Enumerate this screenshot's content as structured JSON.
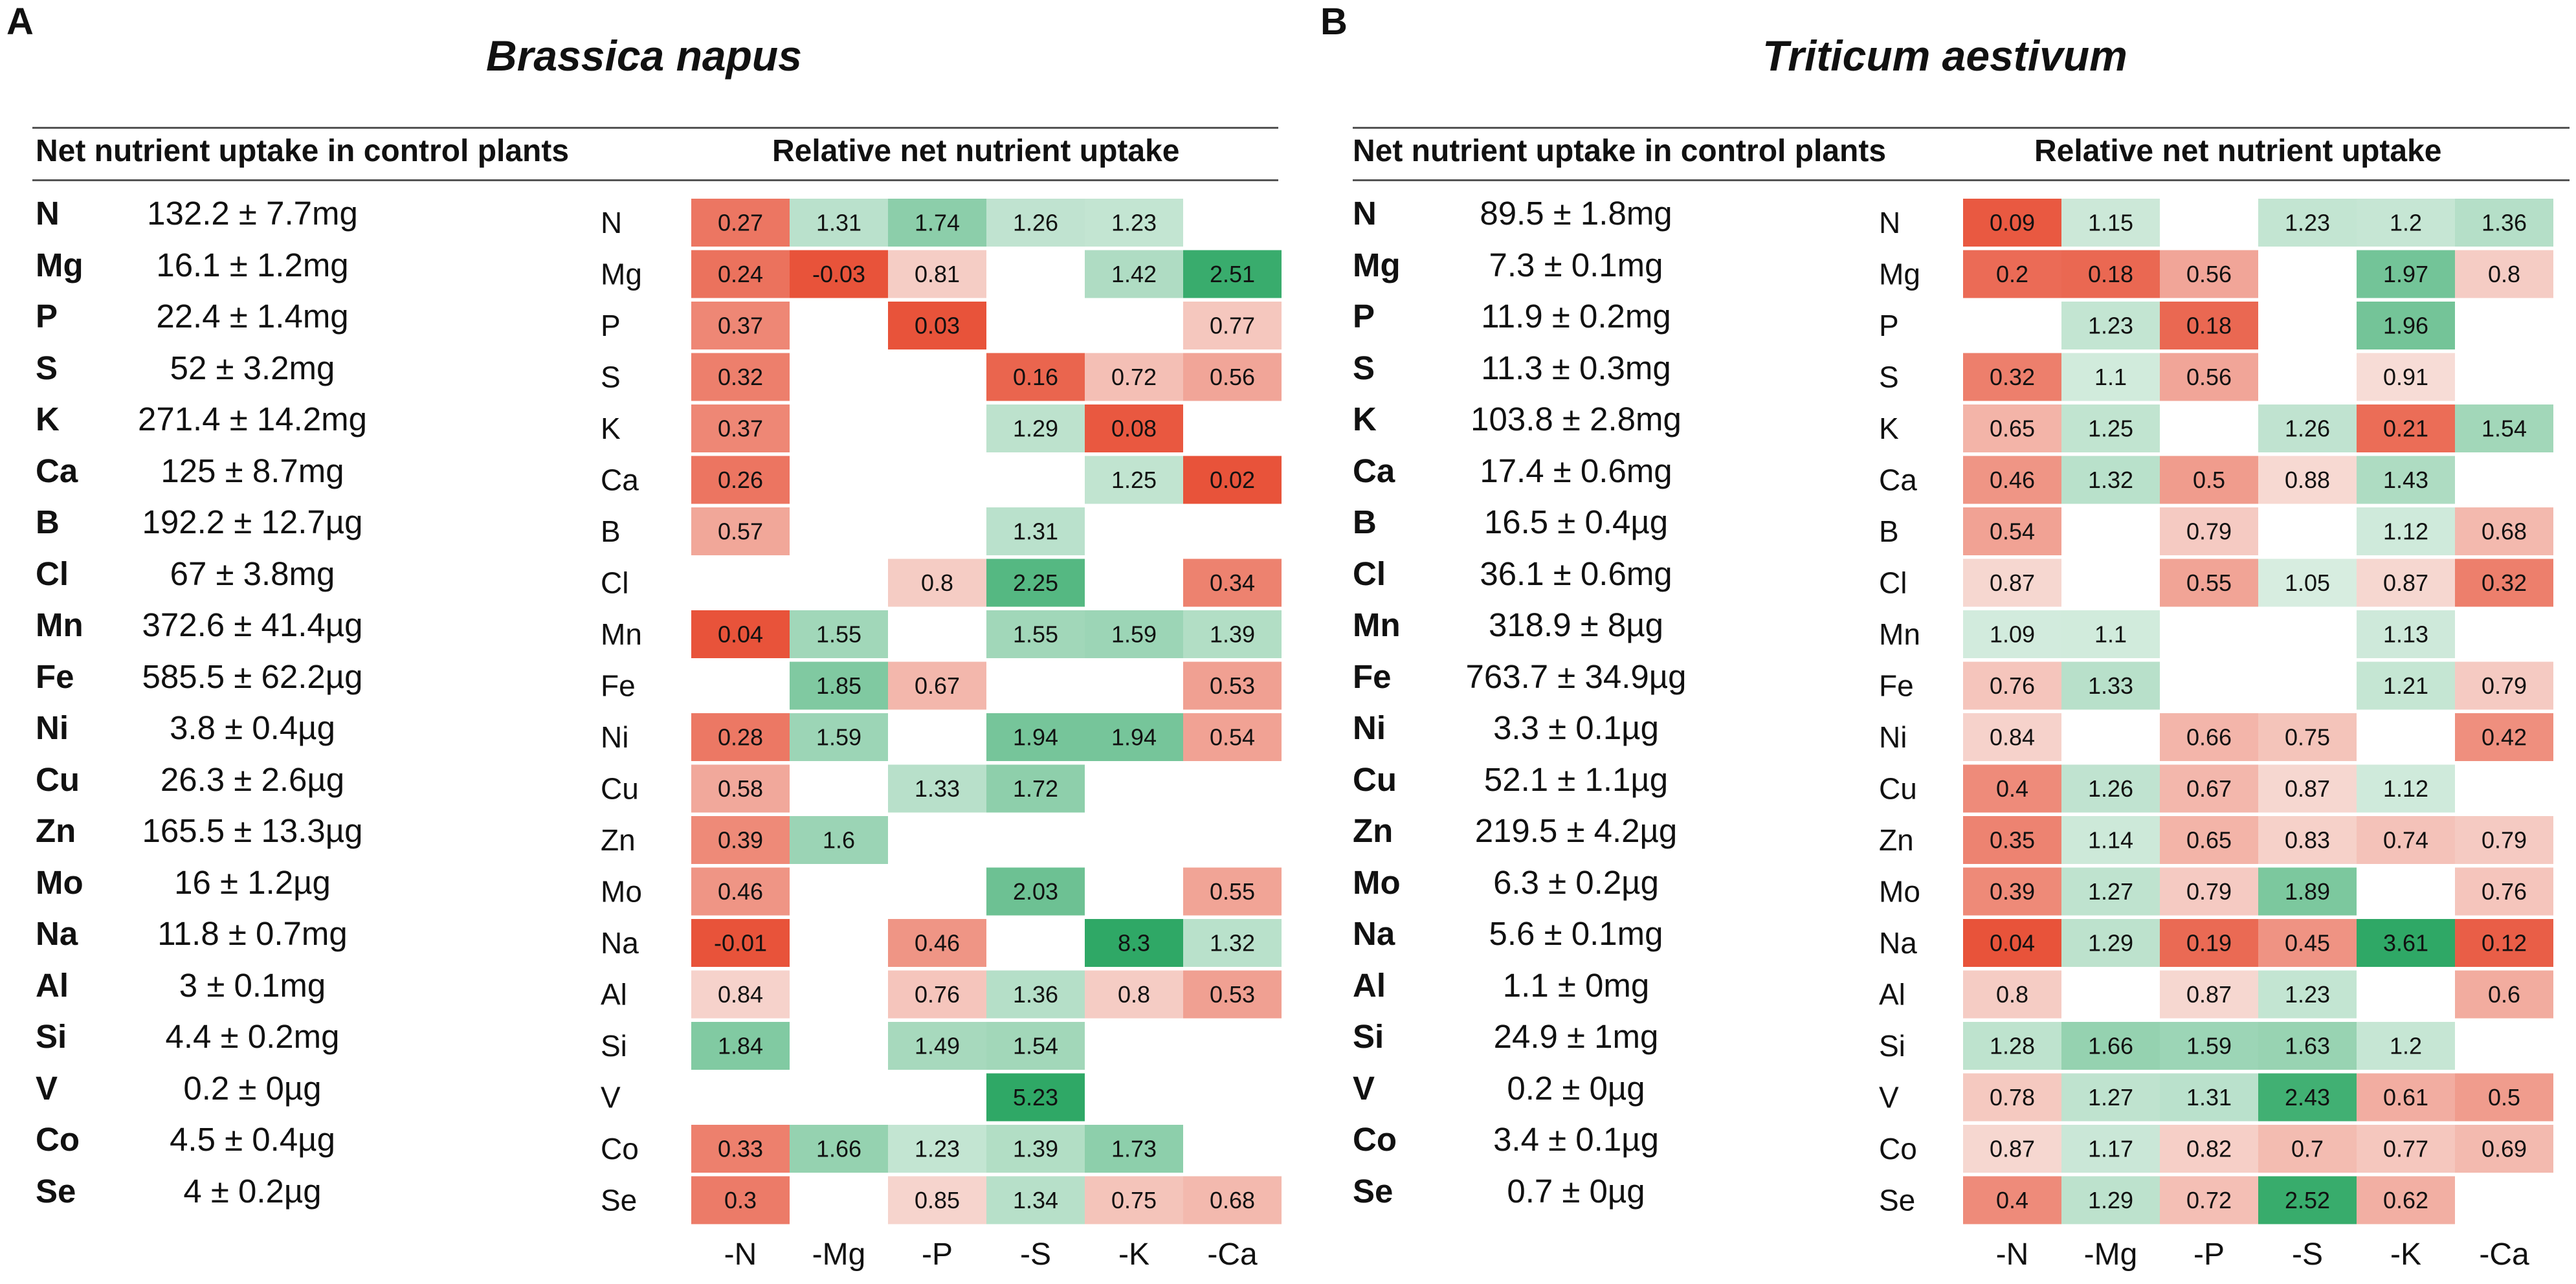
{
  "chart_data": [
    {
      "type": "heatmap",
      "panel": "A",
      "title": "Brassica napus",
      "left_header": "Net nutrient uptake in control plants",
      "right_header": "Relative net nutrient uptake",
      "columns": [
        "-N",
        "-Mg",
        "-P",
        "-S",
        "-K",
        "-Ca"
      ],
      "rows": [
        "N",
        "Mg",
        "P",
        "S",
        "K",
        "Ca",
        "B",
        "Cl",
        "Mn",
        "Fe",
        "Ni",
        "Cu",
        "Zn",
        "Mo",
        "Na",
        "Al",
        "Si",
        "V",
        "Co",
        "Se"
      ],
      "control_uptake": [
        "132.2 ± 7.7mg",
        "16.1 ± 1.2mg",
        "22.4 ± 1.4mg",
        "52 ± 3.2mg",
        "271.4 ± 14.2mg",
        "125 ± 8.7mg",
        "192.2 ± 12.7µg",
        "67 ± 3.8mg",
        "372.6 ± 41.4µg",
        "585.5 ± 62.2µg",
        "3.8 ± 0.4µg",
        "26.3 ± 2.6µg",
        "165.5 ± 13.3µg",
        "16 ± 1.2µg",
        "11.8 ± 0.7mg",
        "3 ± 0.1mg",
        "4.4 ± 0.2mg",
        "0.2 ± 0µg",
        "4.5 ± 0.4µg",
        "4 ± 0.2µg"
      ],
      "values": [
        [
          0.27,
          1.31,
          1.74,
          1.26,
          1.23,
          null
        ],
        [
          0.24,
          -0.03,
          0.81,
          null,
          1.42,
          2.51
        ],
        [
          0.37,
          null,
          0.03,
          null,
          null,
          0.77
        ],
        [
          0.32,
          null,
          null,
          0.16,
          0.72,
          0.56
        ],
        [
          0.37,
          null,
          null,
          1.29,
          0.08,
          null
        ],
        [
          0.26,
          null,
          null,
          null,
          1.25,
          0.02
        ],
        [
          0.57,
          null,
          null,
          1.31,
          null,
          null
        ],
        [
          null,
          null,
          0.8,
          2.25,
          null,
          0.34
        ],
        [
          0.04,
          1.55,
          null,
          1.55,
          1.59,
          1.39
        ],
        [
          null,
          1.85,
          0.67,
          null,
          null,
          0.53
        ],
        [
          0.28,
          1.59,
          null,
          1.94,
          1.94,
          0.54
        ],
        [
          0.58,
          null,
          1.33,
          1.72,
          null,
          null
        ],
        [
          0.39,
          1.6,
          null,
          null,
          null,
          null
        ],
        [
          0.46,
          null,
          null,
          2.03,
          null,
          0.55
        ],
        [
          -0.01,
          null,
          0.46,
          null,
          8.3,
          1.32
        ],
        [
          0.84,
          null,
          0.76,
          1.36,
          0.8,
          0.53
        ],
        [
          1.84,
          null,
          1.49,
          1.54,
          null,
          null
        ],
        [
          null,
          null,
          null,
          5.23,
          null,
          null
        ],
        [
          0.33,
          1.66,
          1.23,
          1.39,
          1.73,
          null
        ],
        [
          0.3,
          null,
          0.85,
          1.34,
          0.75,
          0.68
        ]
      ]
    },
    {
      "type": "heatmap",
      "panel": "B",
      "title": "Triticum aestivum",
      "left_header": "Net nutrient uptake in control plants",
      "right_header": "Relative net nutrient uptake",
      "columns": [
        "-N",
        "-Mg",
        "-P",
        "-S",
        "-K",
        "-Ca"
      ],
      "rows": [
        "N",
        "Mg",
        "P",
        "S",
        "K",
        "Ca",
        "B",
        "Cl",
        "Mn",
        "Fe",
        "Ni",
        "Cu",
        "Zn",
        "Mo",
        "Na",
        "Al",
        "Si",
        "V",
        "Co",
        "Se"
      ],
      "control_uptake": [
        "89.5 ± 1.8mg",
        "7.3 ± 0.1mg",
        "11.9 ± 0.2mg",
        "11.3 ± 0.3mg",
        "103.8 ± 2.8mg",
        "17.4 ± 0.6mg",
        "16.5 ± 0.4µg",
        "36.1 ± 0.6mg",
        "318.9 ± 8µg",
        "763.7 ± 34.9µg",
        "3.3 ± 0.1µg",
        "52.1 ± 1.1µg",
        "219.5 ± 4.2µg",
        "6.3 ± 0.2µg",
        "5.6 ± 0.1mg",
        "1.1 ± 0mg",
        "24.9 ± 1mg",
        "0.2 ± 0µg",
        "3.4 ± 0.1µg",
        "0.7 ± 0µg"
      ],
      "values": [
        [
          0.09,
          1.15,
          null,
          1.23,
          1.2,
          1.36
        ],
        [
          0.2,
          0.18,
          0.56,
          null,
          1.97,
          0.8
        ],
        [
          null,
          1.23,
          0.18,
          null,
          1.96,
          null
        ],
        [
          0.32,
          1.1,
          0.56,
          null,
          0.91,
          null
        ],
        [
          0.65,
          1.25,
          null,
          1.26,
          0.21,
          1.54
        ],
        [
          0.46,
          1.32,
          0.5,
          0.88,
          1.43,
          null
        ],
        [
          0.54,
          null,
          0.79,
          null,
          1.12,
          0.68
        ],
        [
          0.87,
          null,
          0.55,
          1.05,
          0.87,
          0.32
        ],
        [
          1.09,
          1.1,
          null,
          null,
          1.13,
          null
        ],
        [
          0.76,
          1.33,
          null,
          null,
          1.21,
          0.79
        ],
        [
          0.84,
          null,
          0.66,
          0.75,
          null,
          0.42
        ],
        [
          0.4,
          1.26,
          0.67,
          0.87,
          1.12,
          null
        ],
        [
          0.35,
          1.14,
          0.65,
          0.83,
          0.74,
          0.79
        ],
        [
          0.39,
          1.27,
          0.79,
          1.89,
          null,
          0.76
        ],
        [
          0.04,
          1.29,
          0.19,
          0.45,
          3.61,
          0.12
        ],
        [
          0.8,
          null,
          0.87,
          1.23,
          null,
          0.6
        ],
        [
          1.28,
          1.66,
          1.59,
          1.63,
          1.2,
          null
        ],
        [
          0.78,
          1.27,
          1.31,
          2.43,
          0.61,
          0.5
        ],
        [
          0.87,
          1.17,
          0.82,
          0.7,
          0.77,
          0.69
        ],
        [
          0.4,
          1.29,
          0.72,
          2.52,
          0.62,
          null
        ]
      ]
    }
  ],
  "colors": {
    "red_strong": "#e8533a",
    "red_light": "#f7dcd6",
    "green_light": "#dcefe4",
    "green_strong": "#2fa866",
    "text": "#111111",
    "rule": "#555555"
  }
}
